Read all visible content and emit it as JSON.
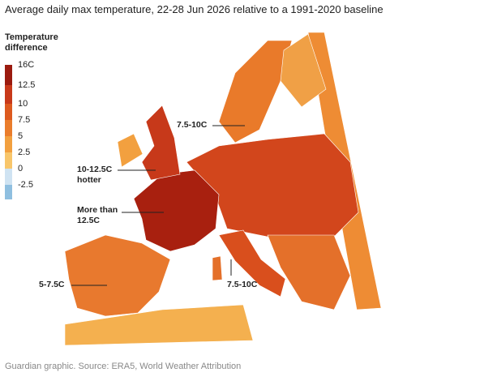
{
  "title": "Average daily max temperature, 22-28 Jun 2026 relative to a 1991-2020 baseline",
  "legend": {
    "title": "Temperature difference",
    "labels": [
      "16C",
      "12.5",
      "10",
      "7.5",
      "5",
      "2.5",
      "0",
      "-2.5"
    ]
  },
  "annotations": [
    {
      "lines": [
        "7.5-10C"
      ]
    },
    {
      "lines": [
        "10-12.5C",
        "hotter"
      ]
    },
    {
      "lines": [
        "More than",
        "12.5C"
      ]
    },
    {
      "lines": [
        "5-7.5C"
      ]
    },
    {
      "lines": [
        "7.5-10C"
      ]
    }
  ],
  "source": "Guardian graphic. Source: ERA5, World Weather Attribution"
}
